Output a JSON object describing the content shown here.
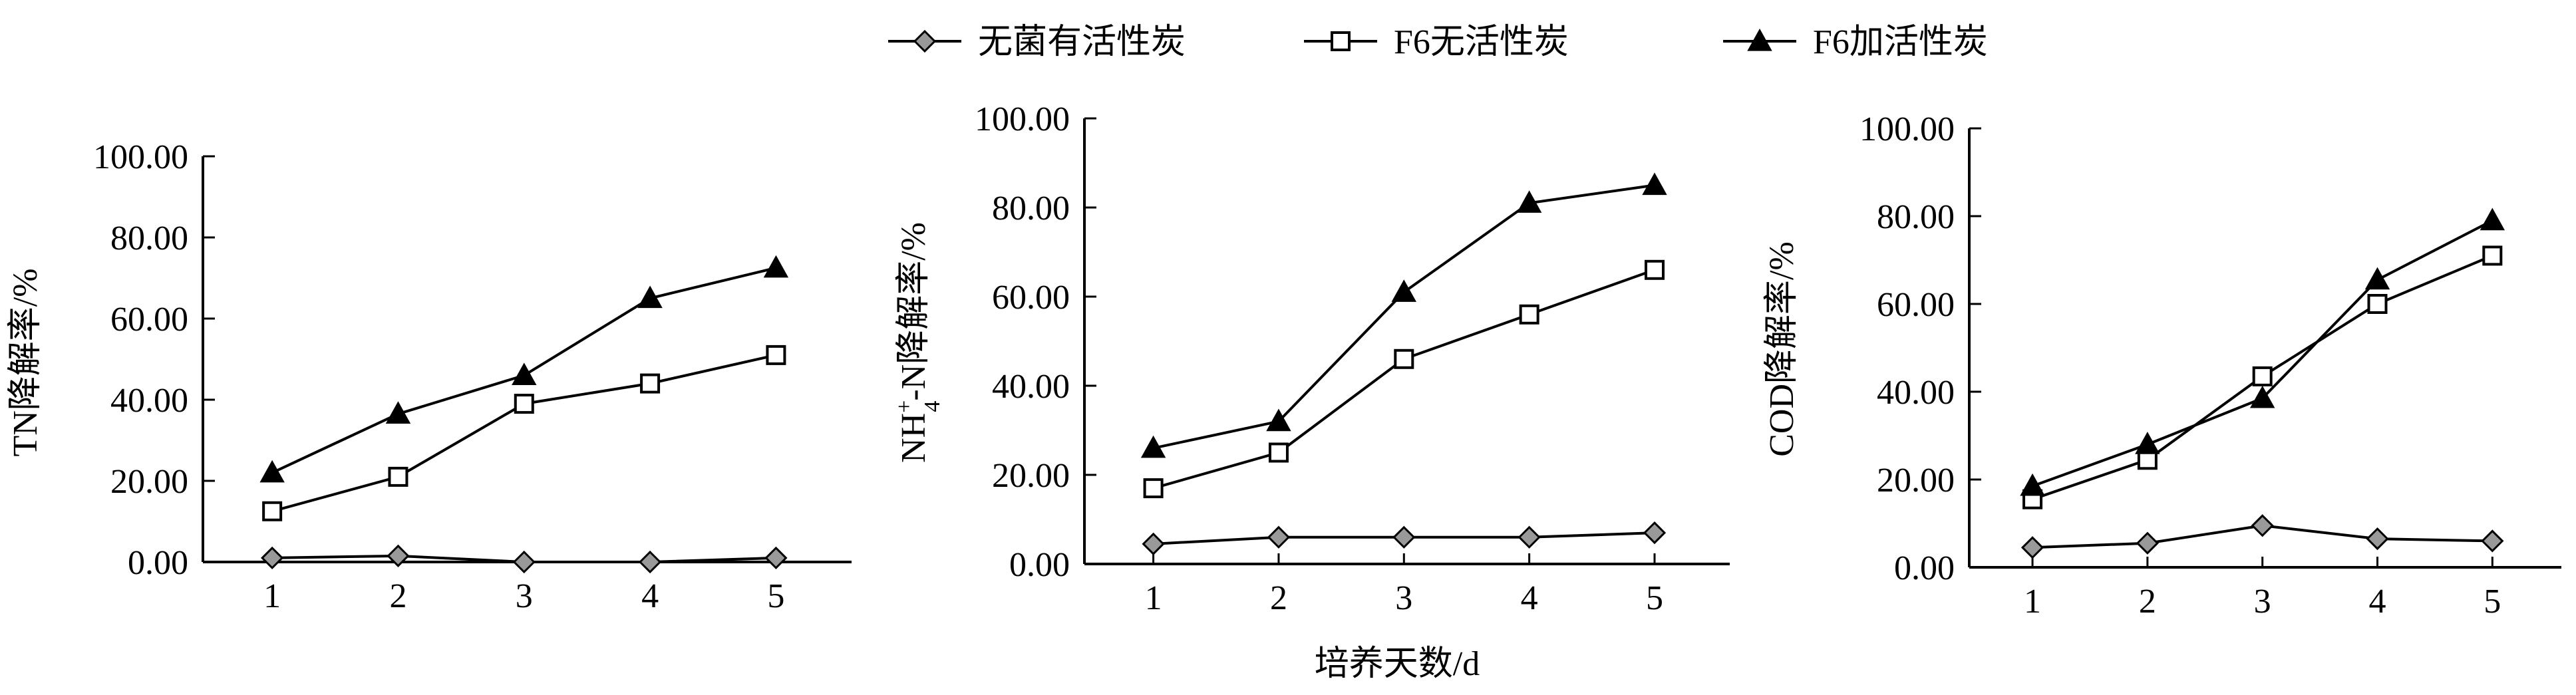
{
  "legend": {
    "items": [
      {
        "label": "无菌有活性炭",
        "marker": "diamond",
        "fill": "#999999"
      },
      {
        "label": "F6无活性炭",
        "marker": "square-open",
        "fill": "#ffffff"
      },
      {
        "label": "F6加活性炭",
        "marker": "triangle",
        "fill": "#000000"
      }
    ]
  },
  "shared_xlabel": "培养天数/d",
  "chart_data": [
    {
      "type": "line",
      "ylabel": "TN降解率/%",
      "categories": [
        "1",
        "2",
        "3",
        "4",
        "5"
      ],
      "ylim": [
        0,
        100
      ],
      "yticks": [
        "0.00",
        "20.00",
        "40.00",
        "60.00",
        "80.00",
        "100.00"
      ],
      "series": [
        {
          "name": "无菌有活性炭",
          "values": [
            1.0,
            1.5,
            0.0,
            0.0,
            1.0
          ]
        },
        {
          "name": "F6无活性炭",
          "values": [
            12.5,
            21.0,
            39.0,
            44.0,
            51.0
          ]
        },
        {
          "name": "F6加活性炭",
          "values": [
            22.0,
            36.5,
            46.0,
            65.0,
            72.5
          ]
        }
      ]
    },
    {
      "type": "line",
      "ylabel_main": "NH",
      "ylabel_sup": "+",
      "ylabel_sub": "4",
      "ylabel_rest": "-N降解率/%",
      "categories": [
        "1",
        "2",
        "3",
        "4",
        "5"
      ],
      "ylim": [
        0,
        100
      ],
      "yticks": [
        "0.00",
        "20.00",
        "40.00",
        "60.00",
        "80.00",
        "100.00"
      ],
      "series": [
        {
          "name": "无菌有活性炭",
          "values": [
            4.5,
            6.0,
            6.0,
            6.0,
            7.0
          ]
        },
        {
          "name": "F6无活性炭",
          "values": [
            17.0,
            25.0,
            46.0,
            56.0,
            66.0
          ]
        },
        {
          "name": "F6加活性炭",
          "values": [
            26.0,
            32.0,
            61.0,
            81.0,
            85.0
          ]
        }
      ]
    },
    {
      "type": "line",
      "ylabel": "COD降解率/%",
      "categories": [
        "1",
        "2",
        "3",
        "4",
        "5"
      ],
      "ylim": [
        0,
        100
      ],
      "yticks": [
        "0.00",
        "20.00",
        "40.00",
        "60.00",
        "80.00",
        "100.00"
      ],
      "series": [
        {
          "name": "无菌有活性炭",
          "values": [
            4.5,
            5.5,
            9.5,
            6.5,
            6.0
          ]
        },
        {
          "name": "F6无活性炭",
          "values": [
            15.5,
            24.5,
            43.5,
            60.0,
            71.0
          ]
        },
        {
          "name": "F6加活性炭",
          "values": [
            18.5,
            28.0,
            38.5,
            65.5,
            79.0
          ]
        }
      ]
    }
  ]
}
